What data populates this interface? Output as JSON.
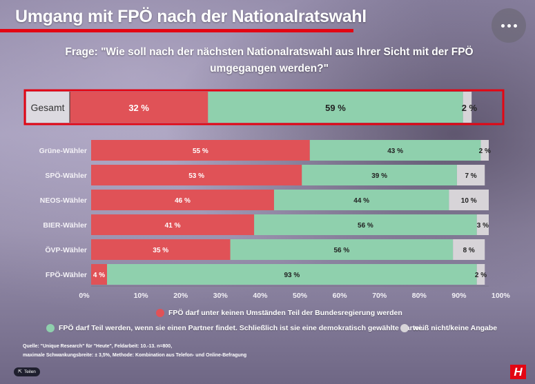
{
  "header": {
    "title": "Umgang mit FPÖ nach der Nationalratswahl",
    "question": "Frage: \"Wie soll nach der nächsten Nationalratswahl aus Ihrer Sicht mit der FPÖ umgegangen werden?\""
  },
  "colors": {
    "red": "#e05257",
    "green": "#8fd0ad",
    "grey": "#d7d4d8",
    "highlight": "#e30613"
  },
  "chart_data": {
    "type": "bar",
    "orientation": "horizontal",
    "stacked": true,
    "categories": [
      "Gesamt",
      "Grüne-Wähler",
      "SPÖ-Wähler",
      "NEOS-Wähler",
      "BIER-Wähler",
      "ÖVP-Wähler",
      "FPÖ-Wähler"
    ],
    "series": [
      {
        "name": "FPÖ darf unter keinen Umständen Teil der Bundesregierung werden",
        "values": [
          32,
          55,
          53,
          46,
          41,
          35,
          4
        ]
      },
      {
        "name": "FPÖ darf Teil werden, wenn sie einen Partner findet. Schließlich ist sie eine demokratisch gewählte Partei.",
        "values": [
          59,
          43,
          39,
          44,
          56,
          56,
          93
        ]
      },
      {
        "name": "weiß nicht/keine Angabe",
        "values": [
          2,
          2,
          7,
          10,
          3,
          8,
          2
        ]
      }
    ],
    "value_labels": [
      [
        "32 %",
        "59 %",
        "2 %"
      ],
      [
        "55 %",
        "43 %",
        "2 %"
      ],
      [
        "53 %",
        "39 %",
        "7 %"
      ],
      [
        "46 %",
        "44 %",
        "10 %"
      ],
      [
        "41 %",
        "56 %",
        "3 %"
      ],
      [
        "35 %",
        "56 %",
        "8 %"
      ],
      [
        "4 %",
        "93 %",
        "2 %"
      ]
    ],
    "xlim": [
      0,
      100
    ],
    "xticks": [
      "0%",
      "10%",
      "20%",
      "30%",
      "40%",
      "50%",
      "60%",
      "70%",
      "80%",
      "90%",
      "100%"
    ],
    "highlighted_category": "Gesamt",
    "legend_position": "bottom"
  },
  "footer": {
    "source_line1": "Quelle: \"Unique Research\" für \"Heute\", Feldarbeit: 10.-13. n=800,",
    "source_line2": "maximale Schwankungsbreite: ± 3,5%, Methode: Kombination aus Telefon- und Online-Befragung",
    "share_label": "Teilen",
    "logo_letter": "H"
  }
}
